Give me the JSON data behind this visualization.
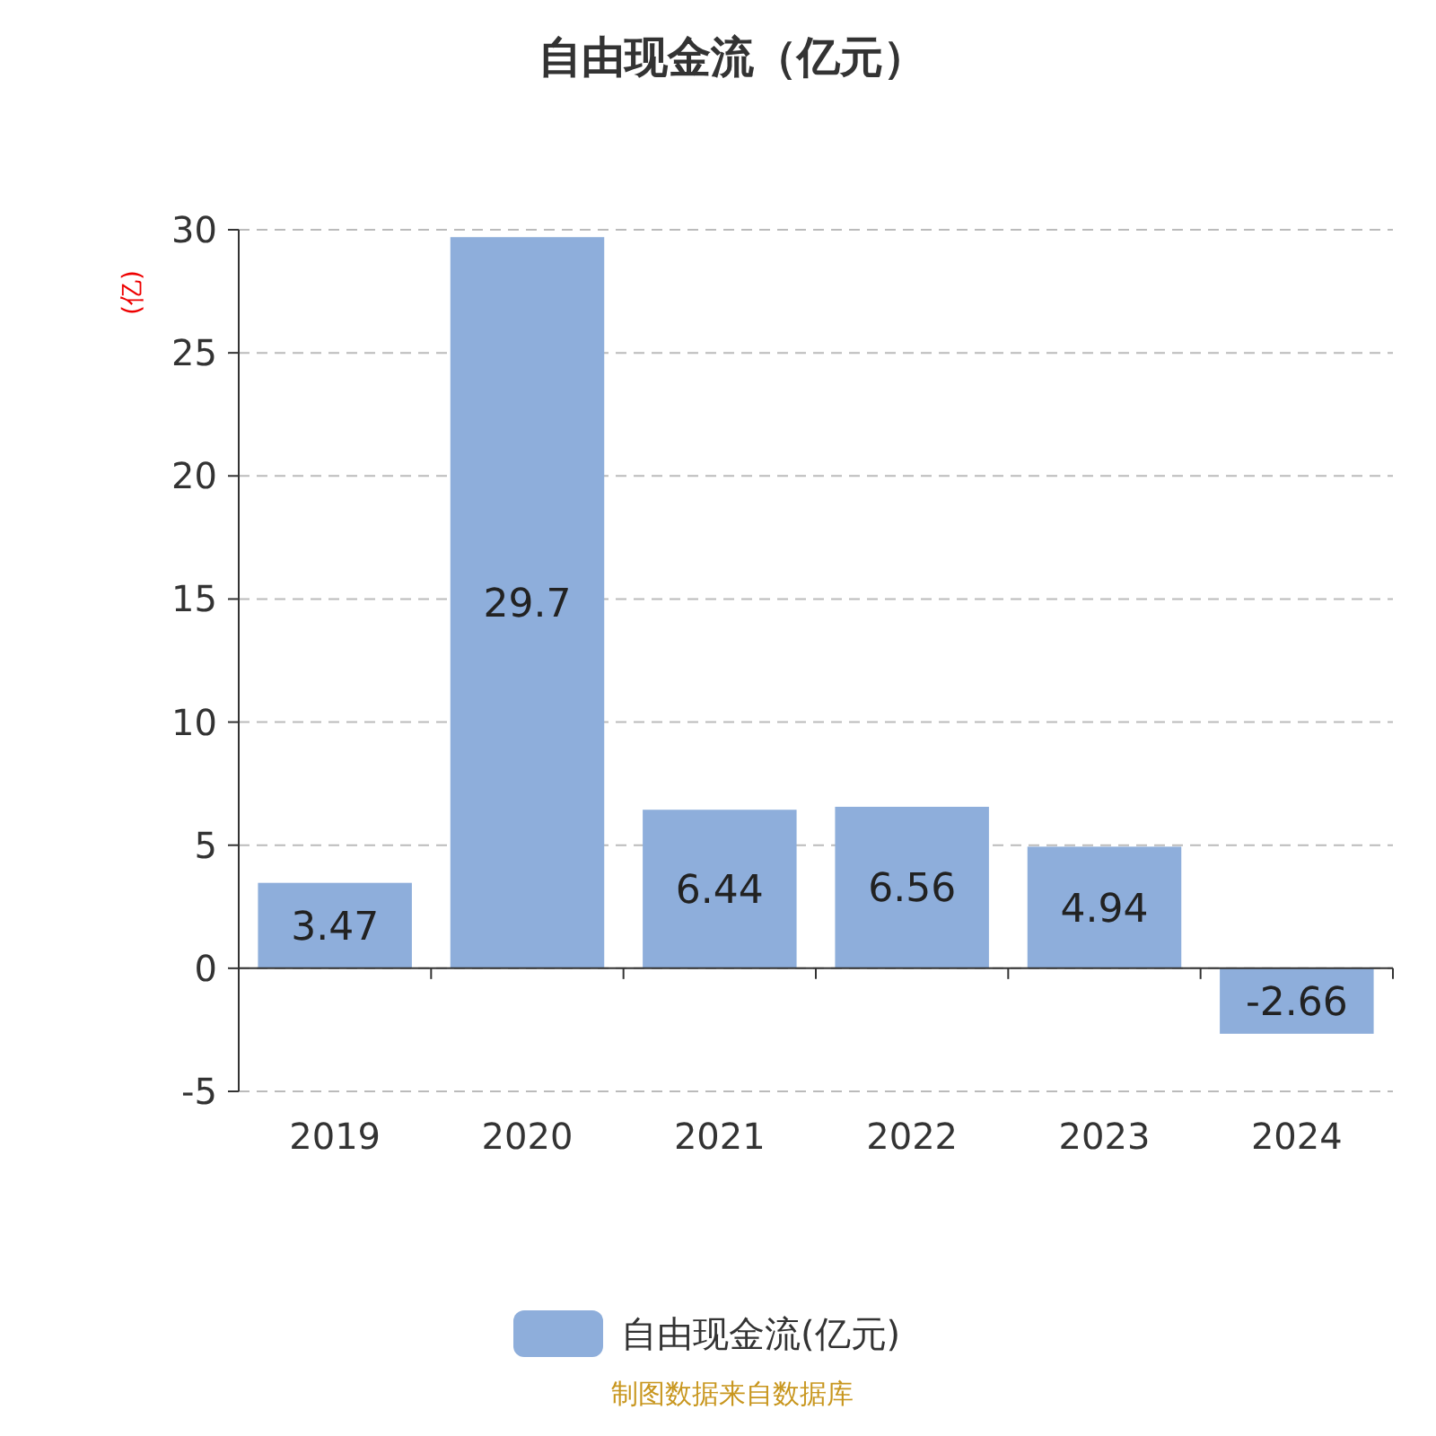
{
  "chart_data": {
    "type": "bar",
    "title": "自由现金流（亿元）",
    "ylabel": "(亿)",
    "categories": [
      "2019",
      "2020",
      "2021",
      "2022",
      "2023",
      "2024"
    ],
    "series": [
      {
        "name": "自由现金流(亿元)",
        "color": "#8eaedb",
        "values": [
          3.47,
          29.7,
          6.44,
          6.56,
          4.94,
          -2.66
        ]
      }
    ],
    "ylim": [
      -5,
      30
    ],
    "yticks": [
      -5,
      0,
      5,
      10,
      15,
      20,
      25,
      30
    ],
    "grid": "y",
    "legend": "bottom",
    "data_labels": true,
    "annotations": [
      "制图数据来自数据库"
    ]
  }
}
